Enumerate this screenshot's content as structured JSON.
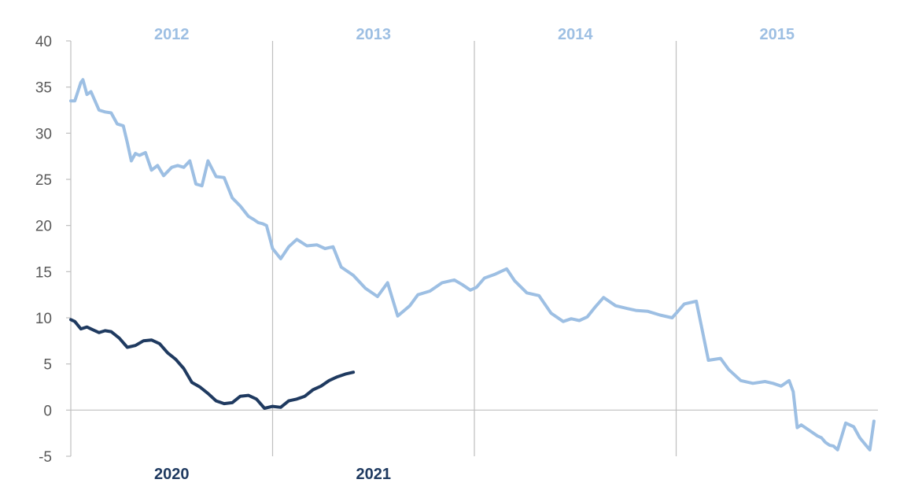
{
  "chart_data": {
    "type": "line",
    "title": "",
    "xlabel": "",
    "ylabel": "",
    "ylim": [
      -5,
      40
    ],
    "yticks": [
      -5,
      0,
      5,
      10,
      15,
      20,
      25,
      30,
      35,
      40
    ],
    "grid": "vertical separators between years",
    "top_axis_labels": [
      "2012",
      "2013",
      "2014",
      "2015"
    ],
    "bottom_axis_labels": [
      "2020",
      "2021"
    ],
    "colors": {
      "top_series": "#9dbfe3",
      "bottom_series": "#1f3a60",
      "axis": "#bfbfbf"
    },
    "series": [
      {
        "axis": "top",
        "x": [
          2012.0,
          2012.02,
          2012.05,
          2012.06,
          2012.08,
          2012.1,
          2012.12,
          2012.14,
          2012.17,
          2012.2,
          2012.23,
          2012.26,
          2012.28,
          2012.3,
          2012.32,
          2012.34,
          2012.37,
          2012.4,
          2012.43,
          2012.46,
          2012.5,
          2012.53,
          2012.56,
          2012.59,
          2012.62,
          2012.65,
          2012.68,
          2012.72,
          2012.76,
          2012.8,
          2012.84,
          2012.88,
          2012.91,
          2012.93,
          2012.95,
          2012.97,
          2013.0,
          2013.04,
          2013.08,
          2013.12,
          2013.17,
          2013.22,
          2013.26,
          2013.3,
          2013.34,
          2013.4,
          2013.46,
          2013.52,
          2013.57,
          2013.62,
          2013.68,
          2013.72,
          2013.78,
          2013.84,
          2013.9,
          2013.94,
          2013.98,
          2014.01,
          2014.05,
          2014.1,
          2014.16,
          2014.2,
          2014.26,
          2014.32,
          2014.38,
          2014.44,
          2014.48,
          2014.52,
          2014.56,
          2014.6,
          2014.64,
          2014.7,
          2014.76,
          2014.8,
          2014.86,
          2014.92,
          2014.98,
          2015.04,
          2015.1,
          2015.16,
          2015.22,
          2015.26,
          2015.32,
          2015.38,
          2015.44,
          2015.48,
          2015.52,
          2015.56,
          2015.58,
          2015.6,
          2015.62,
          2015.66,
          2015.7,
          2015.72,
          2015.74,
          2015.76,
          2015.78,
          2015.8,
          2015.84,
          2015.88,
          2015.91,
          2015.94,
          2015.96,
          2015.98
        ],
        "y": [
          33.5,
          33.5,
          35.5,
          35.8,
          34.2,
          34.5,
          33.5,
          32.5,
          32.3,
          32.2,
          31.0,
          30.8,
          29.0,
          27.0,
          27.8,
          27.6,
          27.9,
          26.0,
          26.5,
          25.4,
          26.3,
          26.5,
          26.3,
          27.0,
          24.5,
          24.3,
          27.0,
          25.3,
          25.2,
          23.0,
          22.1,
          21.0,
          20.6,
          20.3,
          20.2,
          20.0,
          17.5,
          16.4,
          17.7,
          18.5,
          17.8,
          17.9,
          17.5,
          17.7,
          15.5,
          14.6,
          13.2,
          12.3,
          13.8,
          10.2,
          11.3,
          12.5,
          12.9,
          13.8,
          14.1,
          13.6,
          13.0,
          13.3,
          14.3,
          14.7,
          15.3,
          14.0,
          12.7,
          12.4,
          10.5,
          9.6,
          9.9,
          9.7,
          10.1,
          11.2,
          12.2,
          11.3,
          11.0,
          10.8,
          10.7,
          10.3,
          10.0,
          11.5,
          11.8,
          5.4,
          5.6,
          4.4,
          3.2,
          2.9,
          3.1,
          2.9,
          2.6,
          3.2,
          2.0,
          -1.9,
          -1.6,
          -2.2,
          -2.8,
          -3.0,
          -3.5,
          -3.8,
          -3.9,
          -4.3,
          -1.4,
          -1.8,
          -3.0,
          -3.8,
          -4.3,
          -1.2
        ]
      },
      {
        "axis": "bottom",
        "x": [
          2020.0,
          2020.02,
          2020.05,
          2020.08,
          2020.11,
          2020.14,
          2020.17,
          2020.2,
          2020.24,
          2020.28,
          2020.32,
          2020.36,
          2020.4,
          2020.44,
          2020.48,
          2020.52,
          2020.56,
          2020.6,
          2020.64,
          2020.68,
          2020.72,
          2020.76,
          2020.8,
          2020.84,
          2020.88,
          2020.92,
          2020.96,
          2021.0,
          2021.04,
          2021.08,
          2021.12,
          2021.16,
          2021.2,
          2021.24,
          2021.28,
          2021.32,
          2021.36,
          2021.4
        ],
        "y": [
          9.8,
          9.6,
          8.8,
          9.0,
          8.7,
          8.4,
          8.6,
          8.5,
          7.8,
          6.8,
          7.0,
          7.5,
          7.6,
          7.2,
          6.2,
          5.5,
          4.5,
          3.0,
          2.5,
          1.8,
          1.0,
          0.7,
          0.8,
          1.5,
          1.6,
          1.2,
          0.2,
          0.4,
          0.3,
          1.0,
          1.2,
          1.5,
          2.2,
          2.6,
          3.2,
          3.6,
          3.9,
          4.1
        ]
      }
    ]
  }
}
